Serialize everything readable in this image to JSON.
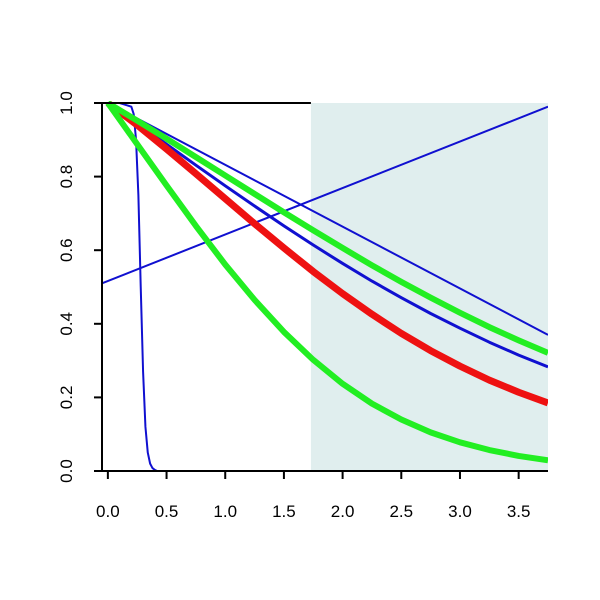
{
  "chart_data": {
    "type": "line",
    "title": "",
    "xlabel": "",
    "ylabel": "",
    "xlim": [
      -0.05,
      3.75
    ],
    "ylim": [
      0.0,
      1.0
    ],
    "x_ticks": [
      0.0,
      0.5,
      1.0,
      1.5,
      2.0,
      2.5,
      3.0,
      3.5
    ],
    "x_tick_labels": [
      "0.0",
      "0.5",
      "1.0",
      "1.5",
      "2.0",
      "2.5",
      "3.0",
      "3.5"
    ],
    "y_ticks": [
      0.0,
      0.2,
      0.4,
      0.6,
      0.8,
      1.0
    ],
    "y_tick_labels": [
      "0.0",
      "0.2",
      "0.4",
      "0.6",
      "0.8",
      "1.0"
    ],
    "grid": false,
    "legend": "none",
    "shaded_region": {
      "x_start": 1.73,
      "x_end": 3.75,
      "color": "#e0eeee"
    },
    "series": [
      {
        "color": "#1010d0",
        "line_width": 2,
        "x": [
          0.0,
          0.1,
          0.2,
          0.22,
          0.24,
          0.26,
          0.28,
          0.3,
          0.32,
          0.34,
          0.36,
          0.38,
          0.4,
          0.42,
          0.45,
          0.5,
          3.75
        ],
        "y": [
          1.0,
          1.0,
          0.99,
          0.97,
          0.9,
          0.75,
          0.5,
          0.27,
          0.12,
          0.05,
          0.02,
          0.008,
          0.003,
          0.0,
          0.0,
          0.0,
          0.0
        ]
      },
      {
        "color": "#1010d0",
        "line_width": 2,
        "x": [
          0.0,
          3.75
        ],
        "y": [
          1.0,
          0.37
        ]
      },
      {
        "color": "#1010d0",
        "line_width": 2,
        "x": [
          -0.05,
          3.75
        ],
        "y": [
          0.51,
          0.99
        ]
      },
      {
        "color": "#1010d0",
        "line_width": 3,
        "x": [
          0.0,
          0.25,
          0.5,
          0.75,
          1.0,
          1.25,
          1.5,
          1.75,
          2.0,
          2.25,
          2.5,
          2.75,
          3.0,
          3.25,
          3.5,
          3.75
        ],
        "y": [
          1.0,
          0.945,
          0.888,
          0.831,
          0.775,
          0.72,
          0.666,
          0.614,
          0.564,
          0.516,
          0.471,
          0.428,
          0.388,
          0.35,
          0.315,
          0.283
        ]
      },
      {
        "color": "#ee1111",
        "line_width": 7,
        "x": [
          0.0,
          0.25,
          0.5,
          0.75,
          1.0,
          1.25,
          1.5,
          1.75,
          2.0,
          2.25,
          2.5,
          2.75,
          3.0,
          3.25,
          3.5,
          3.75
        ],
        "y": [
          1.0,
          0.94,
          0.875,
          0.808,
          0.74,
          0.672,
          0.606,
          0.542,
          0.482,
          0.426,
          0.374,
          0.327,
          0.285,
          0.247,
          0.214,
          0.185
        ]
      },
      {
        "color": "#22ee22",
        "line_width": 6,
        "x": [
          0.0,
          0.25,
          0.5,
          0.75,
          1.0,
          1.25,
          1.5,
          1.75,
          2.0,
          2.25,
          2.5,
          2.75,
          3.0,
          3.25,
          3.5,
          3.75
        ],
        "y": [
          1.0,
          0.952,
          0.903,
          0.853,
          0.803,
          0.753,
          0.703,
          0.654,
          0.606,
          0.559,
          0.514,
          0.471,
          0.43,
          0.391,
          0.355,
          0.321
        ]
      },
      {
        "color": "#22ee22",
        "line_width": 6,
        "x": [
          0.0,
          0.25,
          0.5,
          0.75,
          1.0,
          1.25,
          1.5,
          1.75,
          2.0,
          2.25,
          2.5,
          2.75,
          3.0,
          3.25,
          3.5,
          3.75
        ],
        "y": [
          1.0,
          0.888,
          0.776,
          0.666,
          0.561,
          0.465,
          0.378,
          0.302,
          0.237,
          0.183,
          0.14,
          0.105,
          0.078,
          0.057,
          0.041,
          0.029
        ]
      }
    ]
  }
}
